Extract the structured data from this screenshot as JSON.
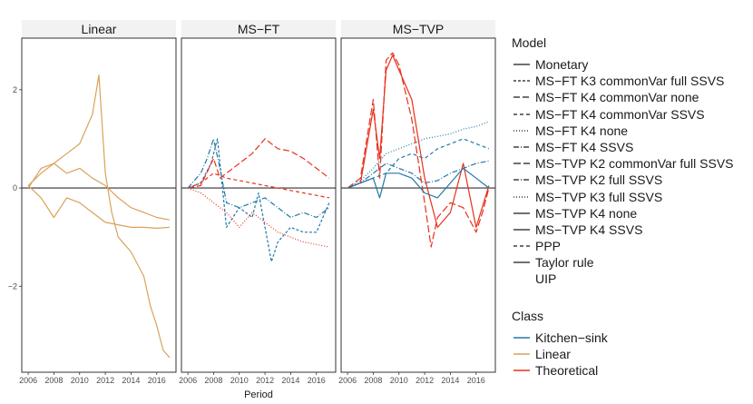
{
  "chart_data": {
    "type": "line",
    "facets": [
      "Linear",
      "MS−FT",
      "MS−TVP"
    ],
    "xlabel": "Period",
    "ylabel": "",
    "xlim": [
      2005.5,
      2017.5
    ],
    "ylim": [
      -3.75,
      3.05
    ],
    "x_ticks": [
      2006,
      2008,
      2010,
      2012,
      2014,
      2016
    ],
    "x_tick_labels": [
      "2006",
      "2008",
      "2010",
      "2012",
      "2014",
      "2016"
    ],
    "y_ticks": [
      -2,
      0,
      2
    ],
    "y_tick_labels": [
      "−2",
      "0",
      "2"
    ],
    "hline": 0,
    "class_colors": {
      "Kitchen-sink": "#2378a8",
      "Linear": "#d9a25b",
      "Theoretical": "#e8301c"
    },
    "series": [
      {
        "facet": 0,
        "name": "Monetary",
        "class": "Linear",
        "dash": "solid",
        "x": [
          2006,
          2007,
          2008,
          2009,
          2010,
          2011,
          2011.5,
          2012,
          2012.5,
          2013,
          2014,
          2015,
          2015.5,
          2016,
          2016.5,
          2017
        ],
        "y": [
          0.05,
          0.3,
          0.5,
          0.7,
          0.9,
          1.5,
          2.3,
          0.3,
          -0.5,
          -1.0,
          -1.3,
          -1.8,
          -2.4,
          -2.8,
          -3.3,
          -3.45
        ]
      },
      {
        "facet": 0,
        "name": "PPP",
        "class": "Linear",
        "dash": "solid",
        "x": [
          2006,
          2007,
          2008,
          2009,
          2010,
          2011,
          2012,
          2013,
          2014,
          2015,
          2016,
          2017
        ],
        "y": [
          0.05,
          -0.2,
          -0.6,
          -0.2,
          -0.3,
          -0.5,
          -0.7,
          -0.75,
          -0.8,
          -0.8,
          -0.82,
          -0.8
        ]
      },
      {
        "facet": 0,
        "name": "Taylor rule",
        "class": "Linear",
        "dash": "solid",
        "x": [
          2006,
          2007,
          2008,
          2009,
          2010,
          2011,
          2012,
          2013,
          2014,
          2015,
          2016,
          2017
        ],
        "y": [
          0.0,
          0.4,
          0.5,
          0.3,
          0.4,
          0.2,
          0.05,
          -0.2,
          -0.4,
          -0.5,
          -0.6,
          -0.65
        ]
      },
      {
        "facet": 1,
        "name": "MS−FT K3 commonVar full SSVS",
        "class": "Kitchen-sink",
        "dash": "3,2",
        "x": [
          2006,
          2007,
          2007.8,
          2008.3,
          2009,
          2010,
          2011,
          2011.5,
          2012,
          2012.5,
          2013,
          2014,
          2015,
          2016,
          2017
        ],
        "y": [
          0.0,
          0.1,
          0.5,
          1.0,
          -0.8,
          -0.4,
          -0.6,
          -0.1,
          -0.8,
          -1.5,
          -1.1,
          -0.8,
          -0.9,
          -0.9,
          -0.3
        ]
      },
      {
        "facet": 1,
        "name": "MS−FT K4 commonVar none",
        "class": "Theoretical",
        "dash": "7,3",
        "x": [
          2006,
          2007,
          2008,
          2008.5,
          2009,
          2010,
          2011,
          2012,
          2013,
          2014,
          2015,
          2016,
          2017
        ],
        "y": [
          0.0,
          0.05,
          0.6,
          0.2,
          0.3,
          0.5,
          0.7,
          1.0,
          0.8,
          0.75,
          0.6,
          0.4,
          0.2
        ]
      },
      {
        "facet": 1,
        "name": "MS−FT K4 commonVar SSVS",
        "class": "Theoretical",
        "dash": "4,3",
        "x": [
          2006,
          2007,
          2008,
          2009,
          2010,
          2011,
          2012,
          2013,
          2014,
          2015,
          2016,
          2017
        ],
        "y": [
          0.0,
          0.1,
          0.3,
          0.2,
          0.15,
          0.1,
          0.05,
          0.0,
          -0.05,
          -0.1,
          -0.15,
          -0.2
        ]
      },
      {
        "facet": 1,
        "name": "MS−FT K4 none",
        "class": "Theoretical",
        "dash": "1,2",
        "x": [
          2006,
          2007,
          2008,
          2009,
          2010,
          2011,
          2012,
          2013,
          2014,
          2015,
          2016,
          2017
        ],
        "y": [
          0.0,
          -0.1,
          -0.3,
          -0.5,
          -0.8,
          -0.5,
          -0.7,
          -0.9,
          -1.0,
          -1.1,
          -1.15,
          -1.2
        ]
      },
      {
        "facet": 1,
        "name": "MS−FT K4 SSVS",
        "class": "Kitchen-sink",
        "dash": "6,2,1,2",
        "x": [
          2006,
          2007,
          2007.5,
          2008,
          2008.5,
          2009,
          2010,
          2011,
          2012,
          2013,
          2014,
          2015,
          2016,
          2017
        ],
        "y": [
          0.0,
          0.3,
          0.6,
          1.0,
          0.4,
          -0.3,
          -0.4,
          -0.3,
          -0.2,
          -0.4,
          -0.6,
          -0.5,
          -0.6,
          -0.4
        ]
      },
      {
        "facet": 2,
        "name": "MS−TVP K2 commonVar full SSVS",
        "class": "Theoretical",
        "dash": "8,3",
        "x": [
          2006,
          2007,
          2008,
          2008.5,
          2009,
          2009.5,
          2010,
          2011,
          2012,
          2012.5,
          2013,
          2014,
          2015,
          2016,
          2016.5,
          2017
        ],
        "y": [
          0.0,
          0.2,
          1.8,
          0.2,
          2.6,
          2.75,
          2.5,
          1.4,
          -0.3,
          -1.2,
          -0.6,
          -0.3,
          -0.4,
          -0.9,
          -0.5,
          0.0
        ]
      },
      {
        "facet": 2,
        "name": "MS−TVP K2 full SSVS",
        "class": "Kitchen-sink",
        "dash": "6,2,1,2",
        "x": [
          2006,
          2007,
          2008,
          2009,
          2010,
          2011,
          2012,
          2013,
          2014,
          2015,
          2016,
          2017
        ],
        "y": [
          0.0,
          0.1,
          0.3,
          0.5,
          0.4,
          0.3,
          0.1,
          0.15,
          0.3,
          0.4,
          0.5,
          0.55
        ]
      },
      {
        "facet": 2,
        "name": "MS−TVP K3 full SSVS",
        "class": "Kitchen-sink",
        "dash": "1,2",
        "x": [
          2006,
          2007,
          2008,
          2009,
          2010,
          2011,
          2012,
          2013,
          2014,
          2015,
          2016,
          2017
        ],
        "y": [
          0.0,
          0.15,
          0.4,
          0.7,
          0.8,
          0.9,
          1.0,
          1.05,
          1.1,
          1.2,
          1.25,
          1.35
        ]
      },
      {
        "facet": 2,
        "name": "MS−TVP K4 none",
        "class": "Theoretical",
        "dash": "solid",
        "x": [
          2006,
          2007,
          2008,
          2008.5,
          2009,
          2009.5,
          2010,
          2011,
          2012,
          2013,
          2014,
          2015,
          2016,
          2017
        ],
        "y": [
          0.0,
          0.1,
          1.6,
          0.6,
          2.4,
          2.7,
          2.4,
          1.8,
          0.2,
          -0.8,
          -0.5,
          0.5,
          -0.8,
          0.05
        ]
      },
      {
        "facet": 2,
        "name": "MS−TVP K4 SSVS",
        "class": "Kitchen-sink",
        "dash": "solid",
        "x": [
          2006,
          2007,
          2008,
          2008.5,
          2009,
          2010,
          2011,
          2012,
          2013,
          2014,
          2015,
          2016,
          2017
        ],
        "y": [
          0.0,
          0.1,
          0.2,
          -0.2,
          0.3,
          0.3,
          0.2,
          -0.1,
          -0.2,
          0.1,
          0.4,
          0.2,
          0.0
        ]
      },
      {
        "facet": 2,
        "name": "PPP",
        "class": "Kitchen-sink",
        "dash": "4,3",
        "x": [
          2006,
          2007,
          2008,
          2009,
          2010,
          2011,
          2012,
          2013,
          2014,
          2015,
          2016,
          2017
        ],
        "y": [
          0.0,
          0.1,
          0.2,
          0.3,
          0.6,
          0.7,
          0.6,
          0.8,
          0.9,
          1.0,
          0.9,
          0.8
        ]
      }
    ],
    "legend": {
      "model_title": "Model",
      "model_items": [
        {
          "label": "Monetary",
          "dash": "solid"
        },
        {
          "label": "MS−FT K3 commonVar full SSVS",
          "dash": "3,2"
        },
        {
          "label": "MS−FT K4 commonVar none",
          "dash": "7,3"
        },
        {
          "label": "MS−FT K4 commonVar SSVS",
          "dash": "4,3"
        },
        {
          "label": "MS−FT K4 none",
          "dash": "1,2"
        },
        {
          "label": "MS−FT K4 SSVS",
          "dash": "6,2,1,2"
        },
        {
          "label": "MS−TVP K2 commonVar full SSVS",
          "dash": "8,3"
        },
        {
          "label": "MS−TVP K2 full SSVS",
          "dash": "6,2,1,2"
        },
        {
          "label": "MS−TVP K3 full SSVS",
          "dash": "1,2"
        },
        {
          "label": "MS−TVP K4 none",
          "dash": "solid"
        },
        {
          "label": "MS−TVP K4 SSVS",
          "dash": "solid"
        },
        {
          "label": "PPP",
          "dash": "4,3"
        },
        {
          "label": "Taylor rule",
          "dash": "solid"
        },
        {
          "label": "UIP",
          "dash": "none"
        }
      ],
      "class_title": "Class",
      "class_items": [
        {
          "label": "Kitchen−sink",
          "color": "#2378a8"
        },
        {
          "label": "Linear",
          "color": "#d9a25b"
        },
        {
          "label": "Theoretical",
          "color": "#e8301c"
        }
      ]
    }
  }
}
